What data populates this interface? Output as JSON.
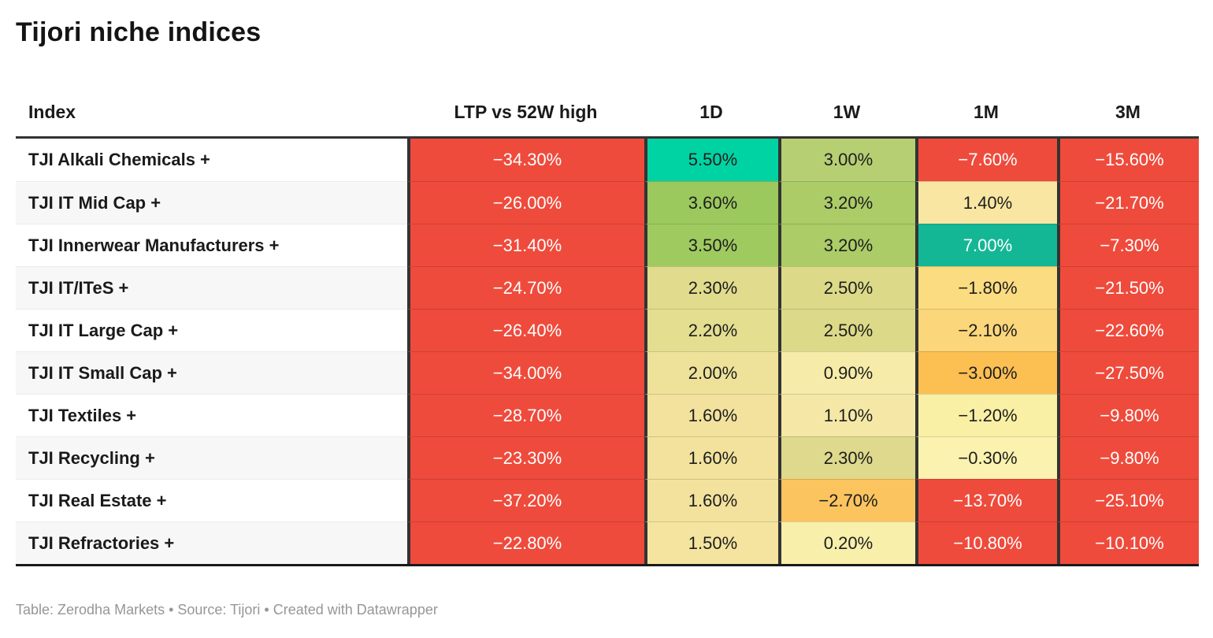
{
  "title": "Tijori niche indices",
  "footer": "Table: Zerodha Markets • Source: Tijori • Created with Datawrapper",
  "table": {
    "columns": [
      {
        "label": "Index"
      },
      {
        "label": "LTP vs 52W high"
      },
      {
        "label": "1D"
      },
      {
        "label": "1W"
      },
      {
        "label": "1M"
      },
      {
        "label": "3M"
      }
    ],
    "rows": [
      {
        "index": "TJI Alkali Chemicals +",
        "cells": [
          {
            "t": "−34.30%",
            "bg": "#ee4b3c",
            "fg": "#ffffff"
          },
          {
            "t": "5.50%",
            "bg": "#00d3a3",
            "fg": "#1d1d1d"
          },
          {
            "t": "3.00%",
            "bg": "#b6cf72",
            "fg": "#1d1d1d"
          },
          {
            "t": "−7.60%",
            "bg": "#ee4b3c",
            "fg": "#ffffff"
          },
          {
            "t": "−15.60%",
            "bg": "#ee4b3c",
            "fg": "#ffffff"
          }
        ]
      },
      {
        "index": "TJI IT Mid Cap +",
        "cells": [
          {
            "t": "−26.00%",
            "bg": "#ee4b3c",
            "fg": "#ffffff"
          },
          {
            "t": "3.60%",
            "bg": "#9cc95e",
            "fg": "#1d1d1d"
          },
          {
            "t": "3.20%",
            "bg": "#abcc67",
            "fg": "#1d1d1d"
          },
          {
            "t": "1.40%",
            "bg": "#f8e6a2",
            "fg": "#1d1d1d"
          },
          {
            "t": "−21.70%",
            "bg": "#ee4b3c",
            "fg": "#ffffff"
          }
        ]
      },
      {
        "index": "TJI Innerwear Manufacturers +",
        "cells": [
          {
            "t": "−31.40%",
            "bg": "#ee4b3c",
            "fg": "#ffffff"
          },
          {
            "t": "3.50%",
            "bg": "#9fca60",
            "fg": "#1d1d1d"
          },
          {
            "t": "3.20%",
            "bg": "#abcc67",
            "fg": "#1d1d1d"
          },
          {
            "t": "7.00%",
            "bg": "#14b795",
            "fg": "#ffffff"
          },
          {
            "t": "−7.30%",
            "bg": "#ee4b3c",
            "fg": "#ffffff"
          }
        ]
      },
      {
        "index": "TJI IT/ITeS +",
        "cells": [
          {
            "t": "−24.70%",
            "bg": "#ee4b3c",
            "fg": "#ffffff"
          },
          {
            "t": "2.30%",
            "bg": "#e1dc8d",
            "fg": "#1d1d1d"
          },
          {
            "t": "2.50%",
            "bg": "#dcda88",
            "fg": "#1d1d1d"
          },
          {
            "t": "−1.80%",
            "bg": "#fbdc81",
            "fg": "#1d1d1d"
          },
          {
            "t": "−21.50%",
            "bg": "#ee4b3c",
            "fg": "#ffffff"
          }
        ]
      },
      {
        "index": "TJI IT Large Cap +",
        "cells": [
          {
            "t": "−26.40%",
            "bg": "#ee4b3c",
            "fg": "#ffffff"
          },
          {
            "t": "2.20%",
            "bg": "#e3de90",
            "fg": "#1d1d1d"
          },
          {
            "t": "2.50%",
            "bg": "#dcda88",
            "fg": "#1d1d1d"
          },
          {
            "t": "−2.10%",
            "bg": "#fbd67a",
            "fg": "#1d1d1d"
          },
          {
            "t": "−22.60%",
            "bg": "#ee4b3c",
            "fg": "#ffffff"
          }
        ]
      },
      {
        "index": "TJI IT Small Cap +",
        "cells": [
          {
            "t": "−34.00%",
            "bg": "#ee4b3c",
            "fg": "#ffffff"
          },
          {
            "t": "2.00%",
            "bg": "#eee29a",
            "fg": "#1d1d1d"
          },
          {
            "t": "0.90%",
            "bg": "#f6eba8",
            "fg": "#1d1d1d"
          },
          {
            "t": "−3.00%",
            "bg": "#fbbf52",
            "fg": "#1d1d1d"
          },
          {
            "t": "−27.50%",
            "bg": "#ee4b3c",
            "fg": "#ffffff"
          }
        ]
      },
      {
        "index": "TJI Textiles +",
        "cells": [
          {
            "t": "−28.70%",
            "bg": "#ee4b3c",
            "fg": "#ffffff"
          },
          {
            "t": "1.60%",
            "bg": "#f3e29d",
            "fg": "#1d1d1d"
          },
          {
            "t": "1.10%",
            "bg": "#f5e8a6",
            "fg": "#1d1d1d"
          },
          {
            "t": "−1.20%",
            "bg": "#f9f0a6",
            "fg": "#1d1d1d"
          },
          {
            "t": "−9.80%",
            "bg": "#ee4b3c",
            "fg": "#ffffff"
          }
        ]
      },
      {
        "index": "TJI Recycling +",
        "cells": [
          {
            "t": "−23.30%",
            "bg": "#ee4b3c",
            "fg": "#ffffff"
          },
          {
            "t": "1.60%",
            "bg": "#f3e29d",
            "fg": "#1d1d1d"
          },
          {
            "t": "2.30%",
            "bg": "#ded98c",
            "fg": "#1d1d1d"
          },
          {
            "t": "−0.30%",
            "bg": "#faf2ae",
            "fg": "#1d1d1d"
          },
          {
            "t": "−9.80%",
            "bg": "#ee4b3c",
            "fg": "#ffffff"
          }
        ]
      },
      {
        "index": "TJI Real Estate +",
        "cells": [
          {
            "t": "−37.20%",
            "bg": "#ee4b3c",
            "fg": "#ffffff"
          },
          {
            "t": "1.60%",
            "bg": "#f3e29d",
            "fg": "#1d1d1d"
          },
          {
            "t": "−2.70%",
            "bg": "#fbc45e",
            "fg": "#1d1d1d"
          },
          {
            "t": "−13.70%",
            "bg": "#ee4b3c",
            "fg": "#ffffff"
          },
          {
            "t": "−25.10%",
            "bg": "#ee4b3c",
            "fg": "#ffffff"
          }
        ]
      },
      {
        "index": "TJI Refractories +",
        "cells": [
          {
            "t": "−22.80%",
            "bg": "#ee4b3c",
            "fg": "#ffffff"
          },
          {
            "t": "1.50%",
            "bg": "#f4e4a0",
            "fg": "#1d1d1d"
          },
          {
            "t": "0.20%",
            "bg": "#f8efab",
            "fg": "#1d1d1d"
          },
          {
            "t": "−10.80%",
            "bg": "#ee4b3c",
            "fg": "#ffffff"
          },
          {
            "t": "−10.10%",
            "bg": "#ee4b3c",
            "fg": "#ffffff"
          }
        ]
      }
    ]
  },
  "chart_data": {
    "type": "table",
    "title": "Tijori niche indices",
    "columns": [
      "Index",
      "LTP vs 52W high",
      "1D",
      "1W",
      "1M",
      "3M"
    ],
    "units": "%",
    "rows": [
      [
        "TJI Alkali Chemicals +",
        -34.3,
        5.5,
        3.0,
        -7.6,
        -15.6
      ],
      [
        "TJI IT Mid Cap +",
        -26.0,
        3.6,
        3.2,
        1.4,
        -21.7
      ],
      [
        "TJI Innerwear Manufacturers +",
        -31.4,
        3.5,
        3.2,
        7.0,
        -7.3
      ],
      [
        "TJI IT/ITeS +",
        -24.7,
        2.3,
        2.5,
        -1.8,
        -21.5
      ],
      [
        "TJI IT Large Cap +",
        -26.4,
        2.2,
        2.5,
        -2.1,
        -22.6
      ],
      [
        "TJI IT Small Cap +",
        -34.0,
        2.0,
        0.9,
        -3.0,
        -27.5
      ],
      [
        "TJI Textiles +",
        -28.7,
        1.6,
        1.1,
        -1.2,
        -9.8
      ],
      [
        "TJI Recycling +",
        -23.3,
        1.6,
        2.3,
        -0.3,
        -9.8
      ],
      [
        "TJI Real Estate +",
        -37.2,
        1.6,
        -2.7,
        -13.7,
        -25.1
      ],
      [
        "TJI Refractories +",
        -22.8,
        1.5,
        0.2,
        -10.8,
        -10.1
      ]
    ],
    "layout_hints": {
      "heatmap_cells": true,
      "negative_color": "#ee4b3c",
      "positive_color": "#14b795",
      "midpoint_color": "#f9f0a6"
    }
  }
}
